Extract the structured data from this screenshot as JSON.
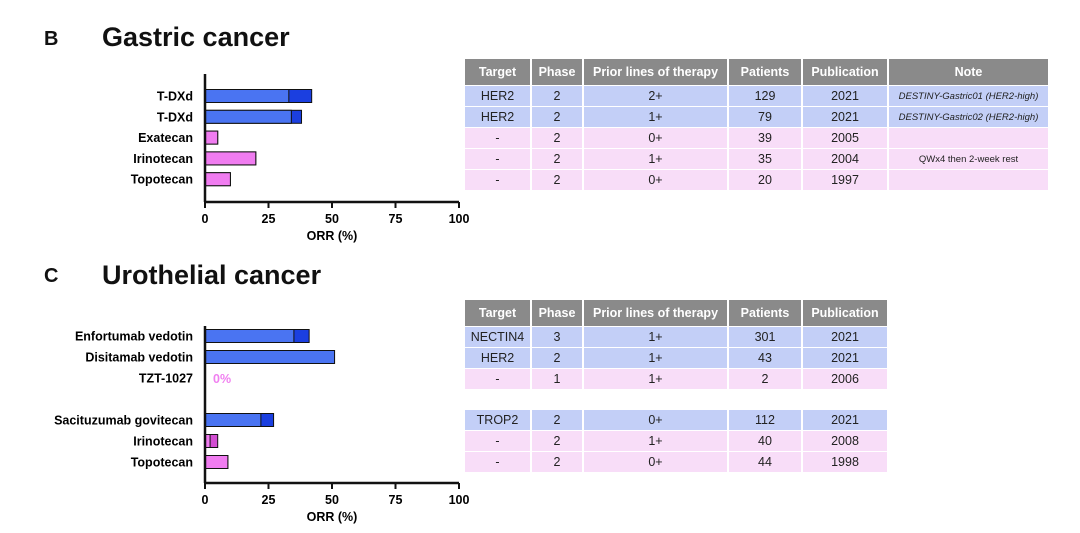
{
  "panels": [
    {
      "letter": "B",
      "title": "Gastric cancer",
      "table": {
        "headers": [
          "Target",
          "Phase",
          "Prior lines of therapy",
          "Patients",
          "Publication",
          "Note"
        ],
        "rows": [
          {
            "color": "blue",
            "cells": [
              "HER2",
              "2",
              "2+",
              "129",
              "2021",
              "DESTINY-Gastric01 (HER2-high)"
            ]
          },
          {
            "color": "blue",
            "cells": [
              "HER2",
              "2",
              "1+",
              "79",
              "2021",
              "DESTINY-Gastric02 (HER2-high)"
            ]
          },
          {
            "color": "pink",
            "cells": [
              "-",
              "2",
              "0+",
              "39",
              "2005",
              ""
            ]
          },
          {
            "color": "pink",
            "cells": [
              "-",
              "2",
              "1+",
              "35",
              "2004",
              "QWx4 then 2-week rest"
            ]
          },
          {
            "color": "pink",
            "cells": [
              "-",
              "2",
              "0+",
              "20",
              "1997",
              ""
            ]
          }
        ]
      }
    },
    {
      "letter": "C",
      "title": "Urothelial cancer",
      "table": {
        "headers": [
          "Target",
          "Phase",
          "Prior lines of therapy",
          "Patients",
          "Publication"
        ],
        "rows": [
          {
            "color": "blue",
            "cells": [
              "NECTIN4",
              "3",
              "1+",
              "301",
              "2021"
            ]
          },
          {
            "color": "blue",
            "cells": [
              "HER2",
              "2",
              "1+",
              "43",
              "2021"
            ]
          },
          {
            "color": "pink",
            "cells": [
              "-",
              "1",
              "1+",
              "2",
              "2006"
            ]
          },
          {
            "color": "gap",
            "cells": []
          },
          {
            "color": "blue",
            "cells": [
              "TROP2",
              "2",
              "0+",
              "112",
              "2021"
            ]
          },
          {
            "color": "pink",
            "cells": [
              "-",
              "2",
              "1+",
              "40",
              "2008"
            ]
          },
          {
            "color": "pink",
            "cells": [
              "-",
              "2",
              "0+",
              "44",
              "1998"
            ]
          }
        ]
      }
    }
  ],
  "chart_data": [
    {
      "type": "bar",
      "orientation": "horizontal",
      "categories": [
        "T-DXd",
        "T-DXd",
        "Exatecan",
        "Irinotecan",
        "Topotecan"
      ],
      "series": [
        {
          "values": [
            33,
            34,
            5,
            20,
            10
          ]
        },
        {
          "values": [
            42,
            38,
            5,
            20,
            10
          ]
        }
      ],
      "bar_colors": [
        "blue",
        "blue",
        "pink",
        "pink",
        "pink"
      ],
      "xlabel": "ORR (%)",
      "xlim": [
        0,
        100
      ],
      "xticks": [
        "0",
        "25",
        "50",
        "75",
        "100"
      ],
      "grid": false
    },
    {
      "type": "bar",
      "orientation": "horizontal",
      "categories": [
        "Enfortumab vedotin",
        "Disitamab vedotin",
        "TZT-1027",
        "",
        "Sacituzumab govitecan",
        "Irinotecan",
        "Topotecan"
      ],
      "series": [
        {
          "values": [
            35,
            51,
            0,
            null,
            22,
            2,
            9
          ]
        },
        {
          "values": [
            41,
            51,
            0,
            null,
            27,
            5,
            9
          ]
        }
      ],
      "bar_colors": [
        "blue",
        "blue",
        "pink",
        "none",
        "blue",
        "pink",
        "pink"
      ],
      "annotations": [
        {
          "category": "TZT-1027",
          "text": "0%"
        }
      ],
      "xlabel": "ORR (%)",
      "xlim": [
        0,
        100
      ],
      "xticks": [
        "0",
        "25",
        "50",
        "75",
        "100"
      ],
      "grid": false
    }
  ],
  "colors": {
    "blue_light": "#4a74f2",
    "blue_dark": "#1b3fe0",
    "pink_light": "#f07cf0",
    "pink_dark": "#d24ed2",
    "annotation": "#f080f0",
    "header_bg": "#8a8a8a",
    "row_blue": "#c3cff7",
    "row_pink": "#f8ddf8"
  }
}
